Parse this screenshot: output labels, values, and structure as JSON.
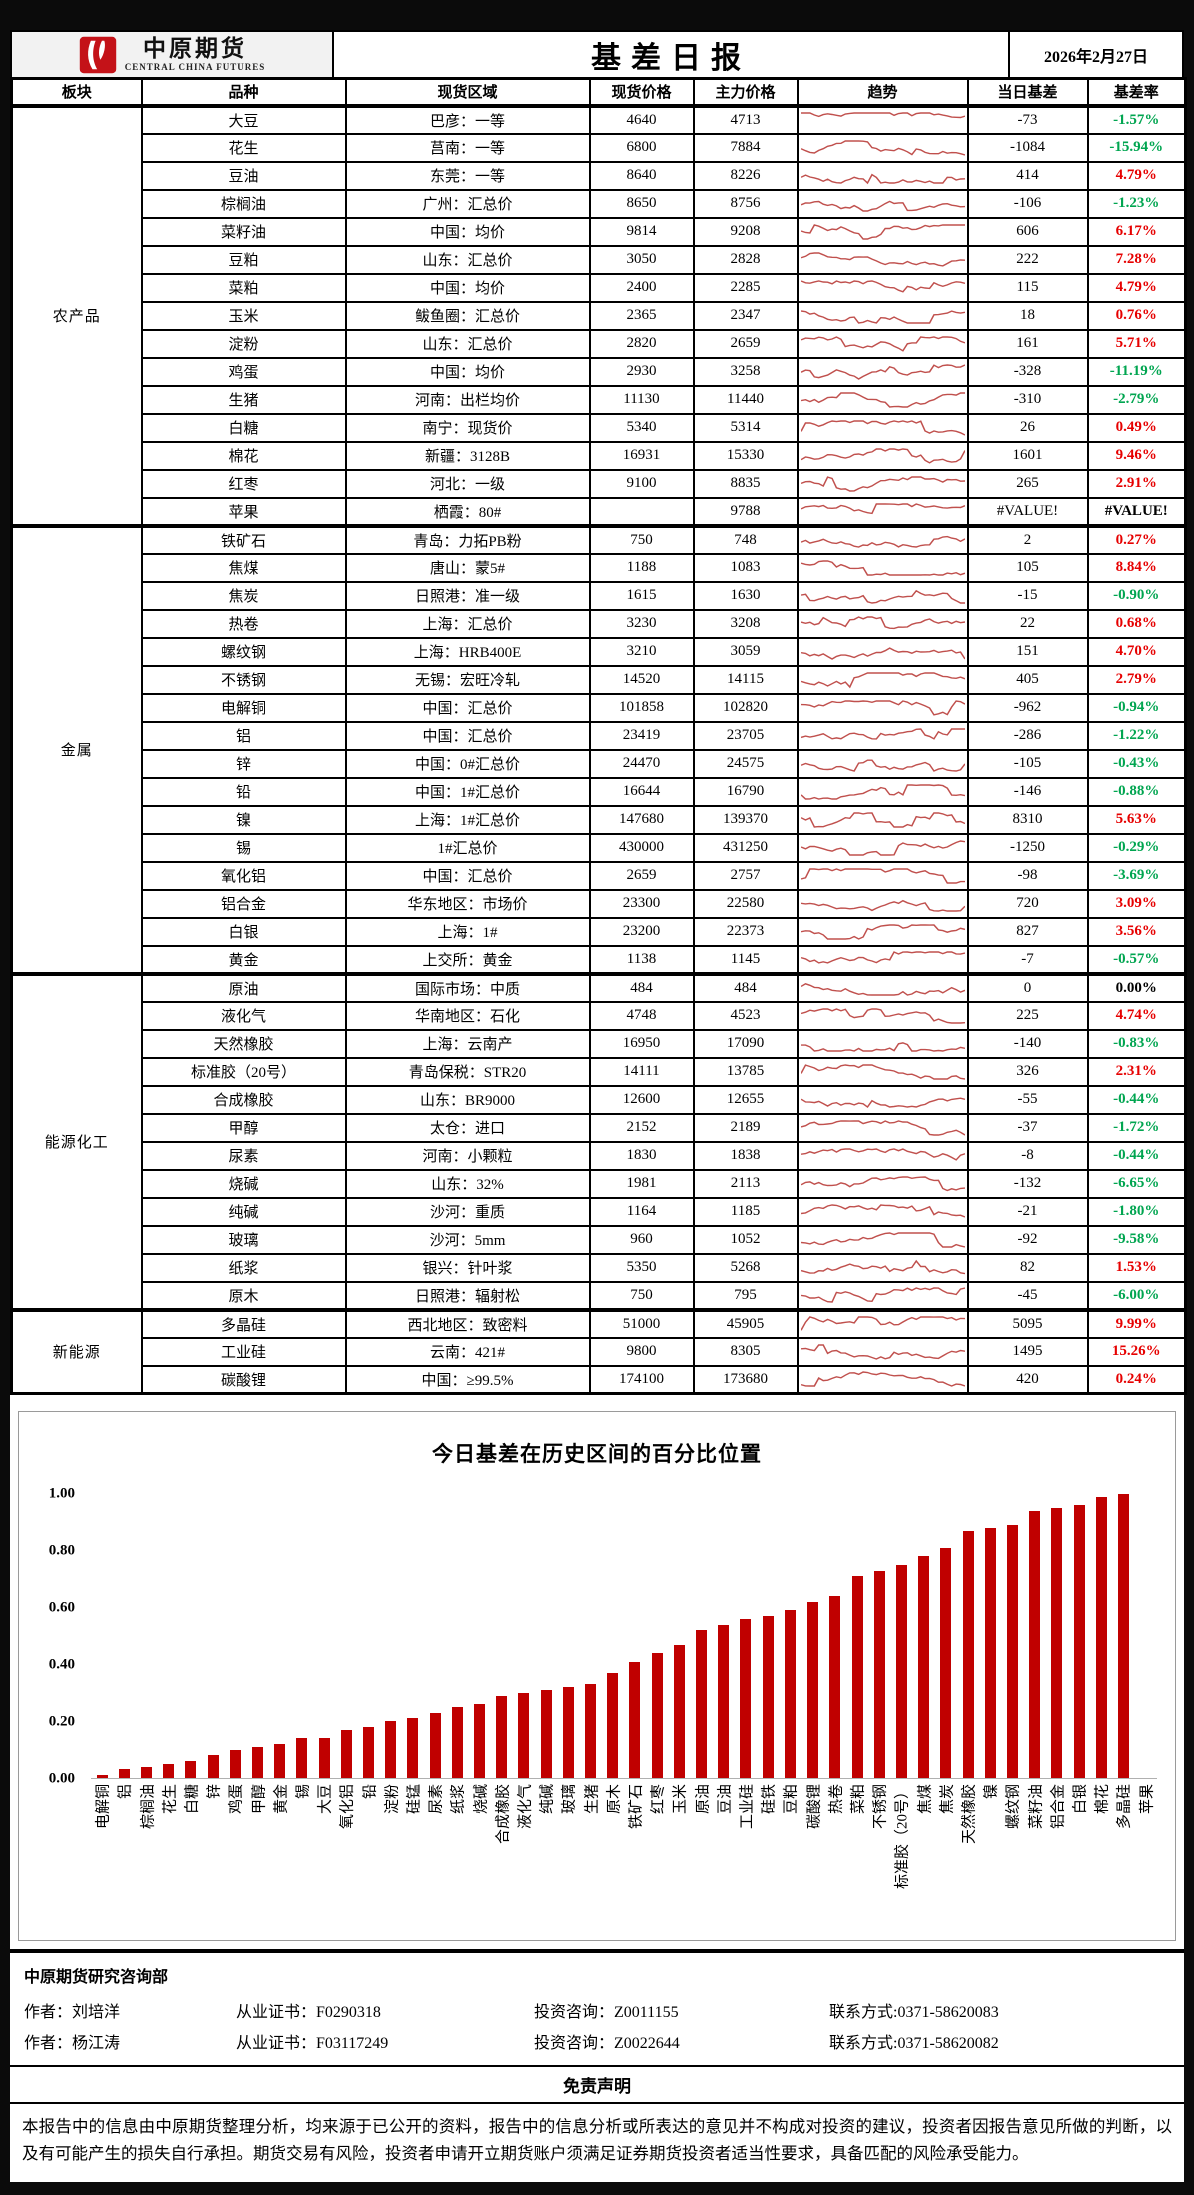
{
  "header": {
    "logo": {
      "brand_cn": "中原期货",
      "brand_en": "CENTRAL CHINA FUTURES"
    },
    "title": "基差日报",
    "date": "2026年2月27日"
  },
  "table": {
    "columns": [
      "板块",
      "品种",
      "现货区域",
      "现货价格",
      "主力价格",
      "趋势",
      "当日基差",
      "基差率"
    ],
    "trend_type": "red-sparkline",
    "sectors": [
      {
        "name": "农产品",
        "rows": [
          {
            "product": "大豆",
            "region": "巴彦：一等",
            "spot": "4640",
            "main": "4713",
            "basis": "-73",
            "rate": "-1.57%",
            "dir": "neg"
          },
          {
            "product": "花生",
            "region": "莒南：一等",
            "spot": "6800",
            "main": "7884",
            "basis": "-1084",
            "rate": "-15.94%",
            "dir": "neg"
          },
          {
            "product": "豆油",
            "region": "东莞：一等",
            "spot": "8640",
            "main": "8226",
            "basis": "414",
            "rate": "4.79%",
            "dir": "pos"
          },
          {
            "product": "棕榈油",
            "region": "广州：汇总价",
            "spot": "8650",
            "main": "8756",
            "basis": "-106",
            "rate": "-1.23%",
            "dir": "neg"
          },
          {
            "product": "菜籽油",
            "region": "中国：均价",
            "spot": "9814",
            "main": "9208",
            "basis": "606",
            "rate": "6.17%",
            "dir": "pos"
          },
          {
            "product": "豆粕",
            "region": "山东：汇总价",
            "spot": "3050",
            "main": "2828",
            "basis": "222",
            "rate": "7.28%",
            "dir": "pos"
          },
          {
            "product": "菜粕",
            "region": "中国：均价",
            "spot": "2400",
            "main": "2285",
            "basis": "115",
            "rate": "4.79%",
            "dir": "pos"
          },
          {
            "product": "玉米",
            "region": "鲅鱼圈：汇总价",
            "spot": "2365",
            "main": "2347",
            "basis": "18",
            "rate": "0.76%",
            "dir": "pos"
          },
          {
            "product": "淀粉",
            "region": "山东：汇总价",
            "spot": "2820",
            "main": "2659",
            "basis": "161",
            "rate": "5.71%",
            "dir": "pos"
          },
          {
            "product": "鸡蛋",
            "region": "中国：均价",
            "spot": "2930",
            "main": "3258",
            "basis": "-328",
            "rate": "-11.19%",
            "dir": "neg"
          },
          {
            "product": "生猪",
            "region": "河南：出栏均价",
            "spot": "11130",
            "main": "11440",
            "basis": "-310",
            "rate": "-2.79%",
            "dir": "neg"
          },
          {
            "product": "白糖",
            "region": "南宁：现货价",
            "spot": "5340",
            "main": "5314",
            "basis": "26",
            "rate": "0.49%",
            "dir": "pos"
          },
          {
            "product": "棉花",
            "region": "新疆：3128B",
            "spot": "16931",
            "main": "15330",
            "basis": "1601",
            "rate": "9.46%",
            "dir": "pos"
          },
          {
            "product": "红枣",
            "region": "河北：一级",
            "spot": "9100",
            "main": "8835",
            "basis": "265",
            "rate": "2.91%",
            "dir": "pos"
          },
          {
            "product": "苹果",
            "region": "栖霞：80#",
            "spot": "",
            "main": "9788",
            "basis": "#VALUE!",
            "rate": "#VALUE!",
            "dir": "err"
          }
        ]
      },
      {
        "name": "金属",
        "rows": [
          {
            "product": "铁矿石",
            "region": "青岛：力拓PB粉",
            "spot": "750",
            "main": "748",
            "basis": "2",
            "rate": "0.27%",
            "dir": "pos"
          },
          {
            "product": "焦煤",
            "region": "唐山：蒙5#",
            "spot": "1188",
            "main": "1083",
            "basis": "105",
            "rate": "8.84%",
            "dir": "pos"
          },
          {
            "product": "焦炭",
            "region": "日照港：准一级",
            "spot": "1615",
            "main": "1630",
            "basis": "-15",
            "rate": "-0.90%",
            "dir": "neg"
          },
          {
            "product": "热卷",
            "region": "上海：汇总价",
            "spot": "3230",
            "main": "3208",
            "basis": "22",
            "rate": "0.68%",
            "dir": "pos"
          },
          {
            "product": "螺纹钢",
            "region": "上海：HRB400E",
            "spot": "3210",
            "main": "3059",
            "basis": "151",
            "rate": "4.70%",
            "dir": "pos"
          },
          {
            "product": "不锈钢",
            "region": "无锡：宏旺冷轧",
            "spot": "14520",
            "main": "14115",
            "basis": "405",
            "rate": "2.79%",
            "dir": "pos"
          },
          {
            "product": "电解铜",
            "region": "中国：汇总价",
            "spot": "101858",
            "main": "102820",
            "basis": "-962",
            "rate": "-0.94%",
            "dir": "neg"
          },
          {
            "product": "铝",
            "region": "中国：汇总价",
            "spot": "23419",
            "main": "23705",
            "basis": "-286",
            "rate": "-1.22%",
            "dir": "neg"
          },
          {
            "product": "锌",
            "region": "中国：0#汇总价",
            "spot": "24470",
            "main": "24575",
            "basis": "-105",
            "rate": "-0.43%",
            "dir": "neg"
          },
          {
            "product": "铅",
            "region": "中国：1#汇总价",
            "spot": "16644",
            "main": "16790",
            "basis": "-146",
            "rate": "-0.88%",
            "dir": "neg"
          },
          {
            "product": "镍",
            "region": "上海：1#汇总价",
            "spot": "147680",
            "main": "139370",
            "basis": "8310",
            "rate": "5.63%",
            "dir": "pos"
          },
          {
            "product": "锡",
            "region": "1#汇总价",
            "spot": "430000",
            "main": "431250",
            "basis": "-1250",
            "rate": "-0.29%",
            "dir": "neg"
          },
          {
            "product": "氧化铝",
            "region": "中国：汇总价",
            "spot": "2659",
            "main": "2757",
            "basis": "-98",
            "rate": "-3.69%",
            "dir": "neg"
          },
          {
            "product": "铝合金",
            "region": "华东地区：市场价",
            "spot": "23300",
            "main": "22580",
            "basis": "720",
            "rate": "3.09%",
            "dir": "pos"
          },
          {
            "product": "白银",
            "region": "上海：1#",
            "spot": "23200",
            "main": "22373",
            "basis": "827",
            "rate": "3.56%",
            "dir": "pos"
          },
          {
            "product": "黄金",
            "region": "上交所：黄金",
            "spot": "1138",
            "main": "1145",
            "basis": "-7",
            "rate": "-0.57%",
            "dir": "neg"
          }
        ]
      },
      {
        "name": "能源化工",
        "rows": [
          {
            "product": "原油",
            "region": "国际市场：中质",
            "spot": "484",
            "main": "484",
            "basis": "0",
            "rate": "0.00%",
            "dir": "zero"
          },
          {
            "product": "液化气",
            "region": "华南地区：石化",
            "spot": "4748",
            "main": "4523",
            "basis": "225",
            "rate": "4.74%",
            "dir": "pos"
          },
          {
            "product": "天然橡胶",
            "region": "上海：云南产",
            "spot": "16950",
            "main": "17090",
            "basis": "-140",
            "rate": "-0.83%",
            "dir": "neg"
          },
          {
            "product": "标准胶（20号）",
            "region": "青岛保税：STR20",
            "spot": "14111",
            "main": "13785",
            "basis": "326",
            "rate": "2.31%",
            "dir": "pos"
          },
          {
            "product": "合成橡胶",
            "region": "山东：BR9000",
            "spot": "12600",
            "main": "12655",
            "basis": "-55",
            "rate": "-0.44%",
            "dir": "neg"
          },
          {
            "product": "甲醇",
            "region": "太仓：进口",
            "spot": "2152",
            "main": "2189",
            "basis": "-37",
            "rate": "-1.72%",
            "dir": "neg"
          },
          {
            "product": "尿素",
            "region": "河南：小颗粒",
            "spot": "1830",
            "main": "1838",
            "basis": "-8",
            "rate": "-0.44%",
            "dir": "neg"
          },
          {
            "product": "烧碱",
            "region": "山东：32%",
            "spot": "1981",
            "main": "2113",
            "basis": "-132",
            "rate": "-6.65%",
            "dir": "neg"
          },
          {
            "product": "纯碱",
            "region": "沙河：重质",
            "spot": "1164",
            "main": "1185",
            "basis": "-21",
            "rate": "-1.80%",
            "dir": "neg"
          },
          {
            "product": "玻璃",
            "region": "沙河：5mm",
            "spot": "960",
            "main": "1052",
            "basis": "-92",
            "rate": "-9.58%",
            "dir": "neg"
          },
          {
            "product": "纸浆",
            "region": "银兴：针叶浆",
            "spot": "5350",
            "main": "5268",
            "basis": "82",
            "rate": "1.53%",
            "dir": "pos"
          },
          {
            "product": "原木",
            "region": "日照港：辐射松",
            "spot": "750",
            "main": "795",
            "basis": "-45",
            "rate": "-6.00%",
            "dir": "neg"
          }
        ]
      },
      {
        "name": "新能源",
        "rows": [
          {
            "product": "多晶硅",
            "region": "西北地区：致密料",
            "spot": "51000",
            "main": "45905",
            "basis": "5095",
            "rate": "9.99%",
            "dir": "pos"
          },
          {
            "product": "工业硅",
            "region": "云南：421#",
            "spot": "9800",
            "main": "8305",
            "basis": "1495",
            "rate": "15.26%",
            "dir": "pos"
          },
          {
            "product": "碳酸锂",
            "region": "中国：≥99.5%",
            "spot": "174100",
            "main": "173680",
            "basis": "420",
            "rate": "0.24%",
            "dir": "pos"
          }
        ]
      }
    ]
  },
  "chart_data": {
    "type": "bar",
    "title": "今日基差在历史区间的百分比位置",
    "xlabel": "",
    "ylabel": "",
    "ylim": [
      0,
      1
    ],
    "y_ticks": [
      "1.00",
      "0.80",
      "0.60",
      "0.40",
      "0.20",
      "0.00"
    ],
    "grid": false,
    "legend": "none",
    "bar_color": "#c00000",
    "categories": [
      "电解铜",
      "铝",
      "棕榈油",
      "花生",
      "白糖",
      "锌",
      "鸡蛋",
      "甲醇",
      "黄金",
      "锡",
      "大豆",
      "氧化铝",
      "铅",
      "淀粉",
      "硅锰",
      "尿素",
      "纸浆",
      "烧碱",
      "合成橡胶",
      "液化气",
      "纯碱",
      "玻璃",
      "生猪",
      "原木",
      "铁矿石",
      "红枣",
      "玉米",
      "原油",
      "豆油",
      "工业硅",
      "硅铁",
      "豆粕",
      "碳酸锂",
      "热卷",
      "菜粕",
      "不锈钢",
      "标准胶（20号）",
      "焦煤",
      "焦炭",
      "天然橡胶",
      "镍",
      "螺纹钢",
      "菜籽油",
      "铝合金",
      "白银",
      "棉花",
      "多晶硅",
      "苹果"
    ],
    "values": [
      0.01,
      0.03,
      0.04,
      0.05,
      0.06,
      0.08,
      0.1,
      0.11,
      0.12,
      0.14,
      0.14,
      0.17,
      0.18,
      0.2,
      0.21,
      0.23,
      0.25,
      0.26,
      0.29,
      0.3,
      0.31,
      0.32,
      0.33,
      0.37,
      0.41,
      0.44,
      0.47,
      0.52,
      0.54,
      0.56,
      0.57,
      0.59,
      0.62,
      0.64,
      0.71,
      0.73,
      0.75,
      0.78,
      0.81,
      0.87,
      0.88,
      0.89,
      0.94,
      0.95,
      0.96,
      0.99,
      1.0,
      null
    ]
  },
  "footer": {
    "dept": "中原期货研究咨询部",
    "authors": [
      {
        "author": "作者：刘培洋",
        "cert": "从业证书：F0290318",
        "advisory": "投资咨询：Z0011155",
        "contact": "联系方式:0371-58620083"
      },
      {
        "author": "作者：杨江涛",
        "cert": "从业证书：F03117249",
        "advisory": "投资咨询：Z0022644",
        "contact": "联系方式:0371-58620082"
      }
    ],
    "disclaimer_title": "免责声明",
    "disclaimer_text": "本报告中的信息由中原期货整理分析，均来源于已公开的资料，报告中的信息分析或所表达的意见并不构成对投资的建议，投资者因报告意见所做的判断，以及有可能产生的损失自行承担。期货交易有风险，投资者申请开立期货账户须满足证券期货投资者适当性要求，具备匹配的风险承受能力。"
  },
  "colors": {
    "positive": "#e60000",
    "negative": "#00a550",
    "neutral": "#000000",
    "bar": "#c00000",
    "sparkline": "#c0504d"
  }
}
